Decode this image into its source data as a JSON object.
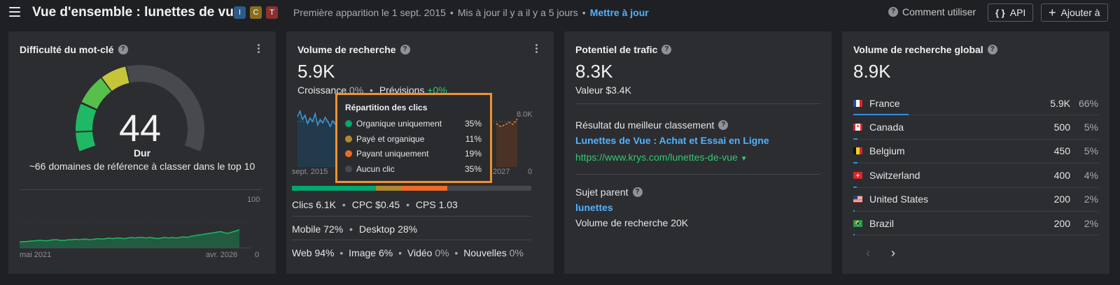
{
  "header": {
    "title": "Vue d'ensemble : lunettes de vue",
    "intents": [
      {
        "label": "I",
        "color": "#2d5b8a"
      },
      {
        "label": "C",
        "color": "#8a6d1e"
      },
      {
        "label": "T",
        "color": "#8a3030"
      }
    ],
    "first_seen": "Première apparition le 1 sept. 2015",
    "dot": "•",
    "updated": "Mis à jour il y a il y a 5 jours",
    "update_link": "Mettre à jour",
    "how_to": "Comment utiliser",
    "api_label": "API",
    "api_icon": "{ }",
    "add_label": "Ajouter à",
    "add_icon": "+"
  },
  "kd": {
    "title": "Difficulté du mot-clé",
    "value": "44",
    "level": "Dur",
    "desc": "~66 domaines de référence à classer dans le top 10",
    "y_max": "100",
    "y_min": "0",
    "x_start": "mai 2021",
    "x_end": "avr. 2026",
    "gauge_fraction": 0.44,
    "history": [
      10,
      11,
      11,
      12,
      12,
      13,
      13,
      12,
      13,
      14,
      14,
      13,
      13,
      14,
      14,
      15,
      14,
      15,
      15,
      14,
      15,
      16,
      15,
      16,
      17,
      16,
      17,
      17,
      16,
      17,
      18,
      17,
      18,
      18,
      17,
      18,
      17,
      16,
      17,
      18,
      17,
      18,
      17,
      18,
      19,
      18,
      20,
      21,
      22,
      23,
      24,
      25,
      26,
      27,
      28,
      26,
      25,
      27,
      29,
      31
    ]
  },
  "volume": {
    "title": "Volume de recherche",
    "value": "5.9K",
    "growth_label": "Croissance",
    "growth_value": "0%",
    "forecast_label": "Prévisions",
    "forecast_value": "+0%",
    "y_max": "8.0K",
    "y_min": "0",
    "x_start": "sept. 2015",
    "x_end": "2027",
    "breakdown_fractions": [
      0.35,
      0.11,
      0.19,
      0.35
    ],
    "breakdown_colors": [
      "#00a86b",
      "#b08a2e",
      "#f06a24",
      "#46484d"
    ],
    "tooltip": {
      "title": "Répartition des clics",
      "rows": [
        {
          "label": "Organique uniquement",
          "value": "35%",
          "color": "#00a86b"
        },
        {
          "label": "Payé et organique",
          "value": "11%",
          "color": "#b08a2e"
        },
        {
          "label": "Payant uniquement",
          "value": "19%",
          "color": "#f06a24"
        },
        {
          "label": "Aucun clic",
          "value": "35%",
          "color": "#46484d"
        }
      ]
    },
    "clicks": "Clics 6.1K",
    "cpc": "CPC $0.45",
    "cps": "CPS 1.03",
    "mobile": "Mobile 72%",
    "desktop": "Desktop 28%",
    "web_label": "Web",
    "web_value": "94%",
    "image_label": "Image",
    "image_value": "6%",
    "video_label": "Vidéo",
    "video_value": "0%",
    "news_label": "Nouvelles",
    "news_value": "0%",
    "bullet": "•"
  },
  "traffic": {
    "title": "Potentiel de trafic",
    "value": "8.3K",
    "worth": "Valeur $3.4K",
    "top_result_label": "Résultat du meilleur classement",
    "top_result_title": "Lunettes de Vue : Achat et Essai en Ligne",
    "top_result_url": "https://www.krys.com/lunettes-de-vue",
    "parent_label": "Sujet parent",
    "parent_topic": "lunettes",
    "parent_volume": "Volume de recherche 20K"
  },
  "global": {
    "title": "Volume de recherche global",
    "value": "8.9K",
    "countries": [
      {
        "name": "France",
        "volume": "5.9K",
        "share": "66%",
        "bar": 0.66,
        "flag": "fr"
      },
      {
        "name": "Canada",
        "volume": "500",
        "share": "5%",
        "bar": 0.05,
        "flag": "ca"
      },
      {
        "name": "Belgium",
        "volume": "450",
        "share": "5%",
        "bar": 0.05,
        "flag": "be"
      },
      {
        "name": "Switzerland",
        "volume": "400",
        "share": "4%",
        "bar": 0.04,
        "flag": "ch"
      },
      {
        "name": "United States",
        "volume": "200",
        "share": "2%",
        "bar": 0.02,
        "flag": "us"
      },
      {
        "name": "Brazil",
        "volume": "200",
        "share": "2%",
        "bar": 0.02,
        "flag": "br"
      }
    ]
  }
}
